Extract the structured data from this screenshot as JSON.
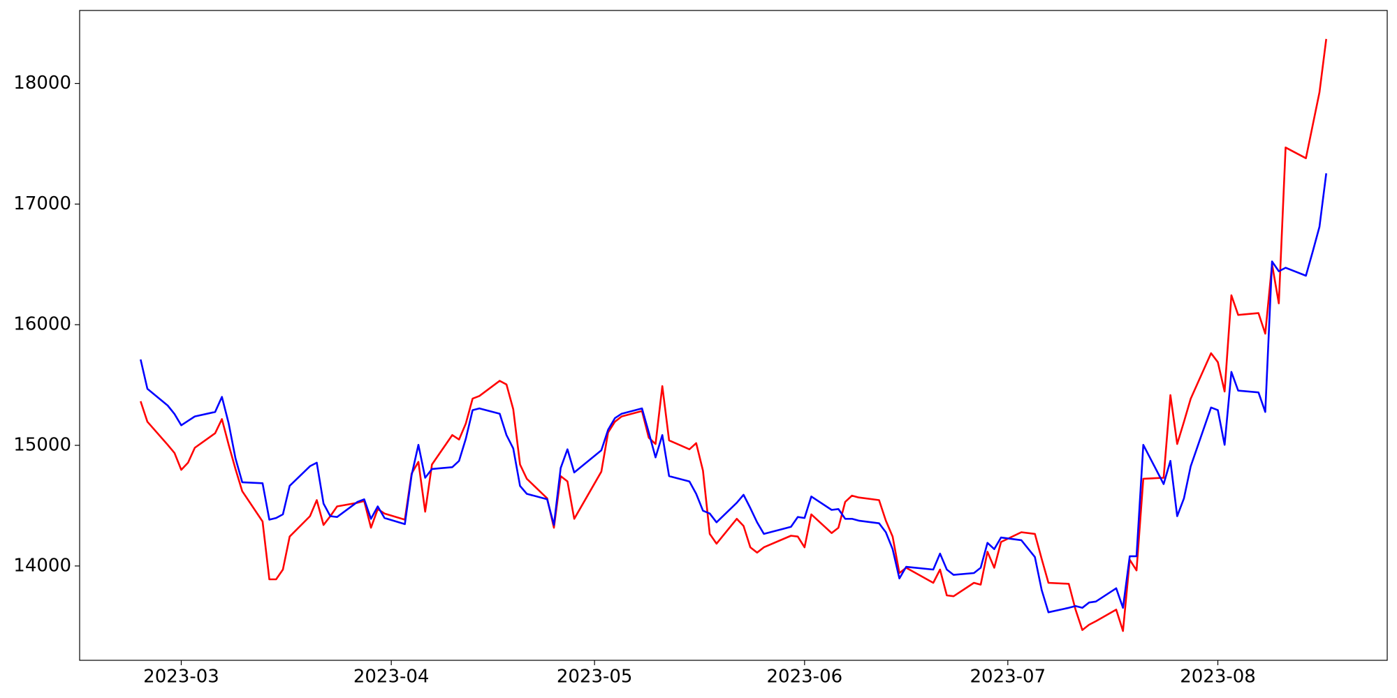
{
  "chart_data": {
    "type": "line",
    "x": [
      "2023-02-23",
      "2023-02-24",
      "2023-02-27",
      "2023-02-28",
      "2023-03-01",
      "2023-03-02",
      "2023-03-03",
      "2023-03-06",
      "2023-03-07",
      "2023-03-08",
      "2023-03-09",
      "2023-03-10",
      "2023-03-13",
      "2023-03-14",
      "2023-03-15",
      "2023-03-16",
      "2023-03-17",
      "2023-03-20",
      "2023-03-21",
      "2023-03-22",
      "2023-03-23",
      "2023-03-24",
      "2023-03-27",
      "2023-03-28",
      "2023-03-29",
      "2023-03-30",
      "2023-03-31",
      "2023-04-03",
      "2023-04-04",
      "2023-04-05",
      "2023-04-06",
      "2023-04-07",
      "2023-04-10",
      "2023-04-11",
      "2023-04-12",
      "2023-04-13",
      "2023-04-14",
      "2023-04-17",
      "2023-04-18",
      "2023-04-19",
      "2023-04-20",
      "2023-04-21",
      "2023-04-24",
      "2023-04-25",
      "2023-04-26",
      "2023-04-27",
      "2023-04-28",
      "2023-05-02",
      "2023-05-03",
      "2023-05-04",
      "2023-05-05",
      "2023-05-08",
      "2023-05-09",
      "2023-05-10",
      "2023-05-11",
      "2023-05-12",
      "2023-05-15",
      "2023-05-16",
      "2023-05-17",
      "2023-05-18",
      "2023-05-19",
      "2023-05-22",
      "2023-05-23",
      "2023-05-24",
      "2023-05-25",
      "2023-05-26",
      "2023-05-30",
      "2023-05-31",
      "2023-06-01",
      "2023-06-02",
      "2023-06-05",
      "2023-06-06",
      "2023-06-07",
      "2023-06-08",
      "2023-06-09",
      "2023-06-12",
      "2023-06-13",
      "2023-06-14",
      "2023-06-15",
      "2023-06-16",
      "2023-06-20",
      "2023-06-21",
      "2023-06-22",
      "2023-06-23",
      "2023-06-26",
      "2023-06-27",
      "2023-06-28",
      "2023-06-29",
      "2023-06-30",
      "2023-07-03",
      "2023-07-05",
      "2023-07-06",
      "2023-07-07",
      "2023-07-10",
      "2023-07-11",
      "2023-07-12",
      "2023-07-13",
      "2023-07-14",
      "2023-07-17",
      "2023-07-18",
      "2023-07-19",
      "2023-07-20",
      "2023-07-21",
      "2023-07-24",
      "2023-07-25",
      "2023-07-26",
      "2023-07-27",
      "2023-07-28",
      "2023-07-31",
      "2023-08-01",
      "2023-08-02",
      "2023-08-03",
      "2023-08-04",
      "2023-08-07",
      "2023-08-08",
      "2023-08-09",
      "2023-08-10",
      "2023-08-11",
      "2023-08-14",
      "2023-08-15",
      "2023-08-16",
      "2023-08-17"
    ],
    "series": [
      {
        "color": "#ff0000",
        "values": [
          15365,
          15196,
          15004,
          14937,
          14797,
          14856,
          14980,
          15100,
          15218,
          15004,
          14804,
          14620,
          14369,
          13889,
          13889,
          13970,
          14244,
          14413,
          14546,
          14340,
          14413,
          14494,
          14524,
          14539,
          14317,
          14472,
          14435,
          14384,
          14767,
          14863,
          14450,
          14841,
          15085,
          15048,
          15181,
          15387,
          15409,
          15535,
          15505,
          15299,
          14841,
          14723,
          14561,
          14317,
          14745,
          14701,
          14391,
          14782,
          15107,
          15196,
          15240,
          15284,
          15063,
          15011,
          15491,
          15041,
          14967,
          15018,
          14790,
          14266,
          14185,
          14391,
          14332,
          14155,
          14111,
          14155,
          14251,
          14244,
          14155,
          14428,
          14273,
          14317,
          14531,
          14583,
          14568,
          14546,
          14376,
          14244,
          13941,
          13985,
          13860,
          13970,
          13756,
          13749,
          13860,
          13845,
          14118,
          13985,
          14199,
          14280,
          14266,
          14059,
          13860,
          13852,
          13638,
          13469,
          13513,
          13542,
          13638,
          13461,
          14052,
          13963,
          14723,
          14731,
          15417,
          15011,
          15196,
          15387,
          15764,
          15690,
          15446,
          16244,
          16081,
          16096,
          15926,
          16502,
          16177,
          17469,
          17380,
          17653,
          17926,
          18369
        ]
      },
      {
        "color": "#0000ff",
        "values": [
          15712,
          15469,
          15330,
          15260,
          15166,
          15203,
          15240,
          15277,
          15402,
          15181,
          14893,
          14694,
          14686,
          14384,
          14398,
          14428,
          14664,
          14827,
          14856,
          14517,
          14413,
          14406,
          14531,
          14553,
          14391,
          14494,
          14398,
          14347,
          14753,
          15004,
          14731,
          14804,
          14819,
          14871,
          15055,
          15292,
          15306,
          15262,
          15085,
          14974,
          14664,
          14598,
          14553,
          14340,
          14812,
          14967,
          14775,
          14959,
          15129,
          15225,
          15262,
          15306,
          15107,
          14900,
          15085,
          14745,
          14701,
          14598,
          14458,
          14435,
          14362,
          14524,
          14590,
          14480,
          14362,
          14266,
          14325,
          14406,
          14398,
          14576,
          14465,
          14472,
          14391,
          14391,
          14376,
          14354,
          14280,
          14140,
          13897,
          13993,
          13970,
          14103,
          13970,
          13926,
          13941,
          13985,
          14192,
          14140,
          14236,
          14214,
          14074,
          13801,
          13616,
          13653,
          13668,
          13653,
          13697,
          13705,
          13815,
          13653,
          14081,
          14081,
          15004,
          14679,
          14871,
          14413,
          14561,
          14827,
          15314,
          15292,
          15004,
          15609,
          15454,
          15439,
          15277,
          16524,
          16443,
          16472,
          16406,
          16605,
          16812,
          17255
        ]
      }
    ],
    "xlim": [
      "2023-02-14",
      "2023-08-26"
    ],
    "xticks": [
      "2023-03",
      "2023-04",
      "2023-05",
      "2023-06",
      "2023-07",
      "2023-08"
    ],
    "ylim": [
      13218,
      18605
    ],
    "yticks": [
      14000,
      15000,
      16000,
      17000,
      18000
    ],
    "grid": false
  }
}
